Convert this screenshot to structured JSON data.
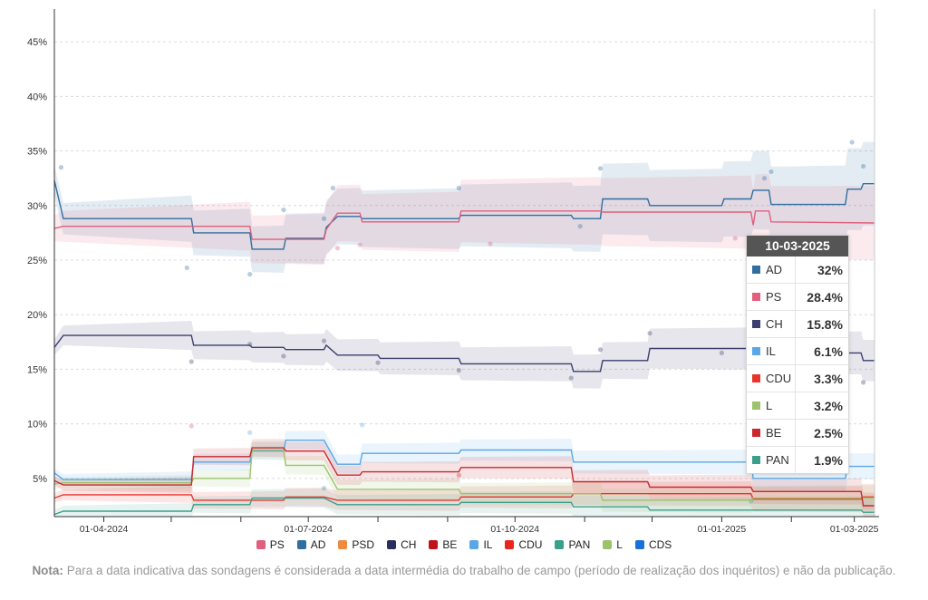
{
  "chart_data": {
    "type": "line",
    "title": "",
    "xlabel": "",
    "ylabel": "",
    "ylim": [
      1.5,
      48
    ],
    "yticks": [
      5,
      10,
      15,
      20,
      25,
      30,
      35,
      40,
      45
    ],
    "ytick_labels": [
      "5%",
      "10%",
      "15%",
      "20%",
      "25%",
      "30%",
      "35%",
      "40%",
      "45%"
    ],
    "xlim": [
      "2024-03-10",
      "2025-03-10"
    ],
    "xtick_labels": [
      {
        "date": "2024-04-01",
        "label": "01-04-2024"
      },
      {
        "date": "2024-07-01",
        "label": "01-07-2024"
      },
      {
        "date": "2024-10-01",
        "label": "01-10-2024"
      },
      {
        "date": "2025-01-01",
        "label": "01-01-2025"
      },
      {
        "date": "2025-03-01",
        "label": "01-03-2025"
      }
    ],
    "grid": true,
    "legend_position": "bottom",
    "series": [
      {
        "name": "AD",
        "color": "#2f6f9f",
        "values": [
          [
            "2024-03-10",
            32.3
          ],
          [
            "2024-03-14",
            28.8
          ],
          [
            "2024-05-10",
            28.8
          ],
          [
            "2024-05-11",
            27.5
          ],
          [
            "2024-06-05",
            27.5
          ],
          [
            "2024-06-06",
            26.0
          ],
          [
            "2024-06-20",
            26.0
          ],
          [
            "2024-06-21",
            27.0
          ],
          [
            "2024-07-08",
            27.0
          ],
          [
            "2024-07-09",
            28.0
          ],
          [
            "2024-07-14",
            29.0
          ],
          [
            "2024-07-24",
            29.0
          ],
          [
            "2024-07-25",
            28.8
          ],
          [
            "2024-09-06",
            28.8
          ],
          [
            "2024-09-07",
            29.1
          ],
          [
            "2024-10-26",
            29.1
          ],
          [
            "2024-10-27",
            28.8
          ],
          [
            "2024-11-08",
            28.8
          ],
          [
            "2024-11-09",
            30.6
          ],
          [
            "2024-11-29",
            30.6
          ],
          [
            "2024-11-30",
            30.0
          ],
          [
            "2025-01-01",
            30.0
          ],
          [
            "2025-01-02",
            30.6
          ],
          [
            "2025-01-14",
            30.6
          ],
          [
            "2025-01-15",
            31.4
          ],
          [
            "2025-01-22",
            31.4
          ],
          [
            "2025-01-23",
            30.1
          ],
          [
            "2025-02-25",
            30.1
          ],
          [
            "2025-02-26",
            31.5
          ],
          [
            "2025-03-04",
            31.5
          ],
          [
            "2025-03-05",
            32.0
          ],
          [
            "2025-03-10",
            32.0
          ]
        ]
      },
      {
        "name": "PS",
        "color": "#e0607e",
        "values": [
          [
            "2024-03-10",
            27.9
          ],
          [
            "2024-03-14",
            28.1
          ],
          [
            "2024-06-05",
            28.1
          ],
          [
            "2024-06-06",
            26.9
          ],
          [
            "2024-07-08",
            26.9
          ],
          [
            "2024-07-09",
            27.8
          ],
          [
            "2024-07-14",
            29.3
          ],
          [
            "2024-07-24",
            29.3
          ],
          [
            "2024-07-25",
            28.5
          ],
          [
            "2024-09-06",
            28.5
          ],
          [
            "2024-09-07",
            29.5
          ],
          [
            "2024-11-08",
            29.5
          ],
          [
            "2024-11-09",
            29.4
          ],
          [
            "2025-01-14",
            29.4
          ],
          [
            "2025-01-15",
            28.2
          ],
          [
            "2025-01-16",
            29.5
          ],
          [
            "2025-01-22",
            29.5
          ],
          [
            "2025-01-23",
            28.5
          ],
          [
            "2025-03-10",
            28.4
          ]
        ]
      },
      {
        "name": "CH",
        "color": "#3b3f6e",
        "values": [
          [
            "2024-03-10",
            17.0
          ],
          [
            "2024-03-14",
            18.1
          ],
          [
            "2024-05-10",
            18.1
          ],
          [
            "2024-05-11",
            17.2
          ],
          [
            "2024-06-05",
            17.2
          ],
          [
            "2024-06-06",
            17.0
          ],
          [
            "2024-06-20",
            17.0
          ],
          [
            "2024-06-21",
            16.8
          ],
          [
            "2024-07-08",
            16.8
          ],
          [
            "2024-07-09",
            17.2
          ],
          [
            "2024-07-14",
            16.3
          ],
          [
            "2024-08-01",
            16.3
          ],
          [
            "2024-08-02",
            16.0
          ],
          [
            "2024-09-06",
            16.0
          ],
          [
            "2024-09-07",
            15.5
          ],
          [
            "2024-10-26",
            15.5
          ],
          [
            "2024-10-27",
            14.8
          ],
          [
            "2024-11-08",
            14.8
          ],
          [
            "2024-11-09",
            15.8
          ],
          [
            "2024-11-29",
            15.8
          ],
          [
            "2024-11-30",
            16.9
          ],
          [
            "2025-01-22",
            16.9
          ],
          [
            "2025-01-23",
            16.5
          ],
          [
            "2025-03-04",
            16.5
          ],
          [
            "2025-03-05",
            15.8
          ],
          [
            "2025-03-10",
            15.8
          ]
        ]
      },
      {
        "name": "IL",
        "color": "#59a7e8",
        "values": [
          [
            "2024-03-10",
            5.5
          ],
          [
            "2024-03-14",
            4.9
          ],
          [
            "2024-05-10",
            4.9
          ],
          [
            "2024-05-11",
            6.5
          ],
          [
            "2024-06-05",
            6.5
          ],
          [
            "2024-06-06",
            7.5
          ],
          [
            "2024-06-20",
            7.5
          ],
          [
            "2024-06-21",
            8.5
          ],
          [
            "2024-07-08",
            8.5
          ],
          [
            "2024-07-14",
            6.3
          ],
          [
            "2024-07-24",
            6.3
          ],
          [
            "2024-07-25",
            7.3
          ],
          [
            "2024-09-06",
            7.3
          ],
          [
            "2024-09-07",
            7.6
          ],
          [
            "2024-10-26",
            7.6
          ],
          [
            "2024-10-27",
            6.5
          ],
          [
            "2025-01-14",
            6.5
          ],
          [
            "2025-01-15",
            5.0
          ],
          [
            "2025-02-25",
            5.0
          ],
          [
            "2025-02-26",
            6.1
          ],
          [
            "2025-03-10",
            6.1
          ]
        ]
      },
      {
        "name": "CDU",
        "color": "#e8352b",
        "values": [
          [
            "2024-03-10",
            3.2
          ],
          [
            "2024-03-14",
            3.5
          ],
          [
            "2024-05-10",
            3.5
          ],
          [
            "2024-05-11",
            3.0
          ],
          [
            "2024-06-20",
            3.0
          ],
          [
            "2024-06-21",
            3.3
          ],
          [
            "2024-07-08",
            3.3
          ],
          [
            "2024-07-14",
            3.0
          ],
          [
            "2024-09-06",
            3.0
          ],
          [
            "2024-09-07",
            3.3
          ],
          [
            "2024-10-26",
            3.3
          ],
          [
            "2024-10-27",
            3.6
          ],
          [
            "2025-01-14",
            3.6
          ],
          [
            "2025-01-15",
            3.1
          ],
          [
            "2025-03-04",
            3.1
          ],
          [
            "2025-03-05",
            3.3
          ],
          [
            "2025-03-10",
            3.3
          ]
        ]
      },
      {
        "name": "L",
        "color": "#9cc36b",
        "values": [
          [
            "2024-03-10",
            4.5
          ],
          [
            "2024-03-14",
            4.6
          ],
          [
            "2024-05-10",
            4.6
          ],
          [
            "2024-05-11",
            5.0
          ],
          [
            "2024-06-05",
            5.0
          ],
          [
            "2024-06-06",
            7.6
          ],
          [
            "2024-06-20",
            7.6
          ],
          [
            "2024-06-21",
            6.2
          ],
          [
            "2024-07-08",
            6.2
          ],
          [
            "2024-07-14",
            4.0
          ],
          [
            "2024-09-06",
            4.0
          ],
          [
            "2024-09-07",
            3.6
          ],
          [
            "2024-11-08",
            3.6
          ],
          [
            "2024-11-09",
            3.0
          ],
          [
            "2025-01-14",
            3.0
          ],
          [
            "2025-01-15",
            3.2
          ],
          [
            "2025-03-10",
            3.2
          ]
        ]
      },
      {
        "name": "BE",
        "color": "#c9282e",
        "values": [
          [
            "2024-03-10",
            4.8
          ],
          [
            "2024-03-14",
            4.4
          ],
          [
            "2024-05-10",
            4.4
          ],
          [
            "2024-05-11",
            7.0
          ],
          [
            "2024-06-05",
            7.0
          ],
          [
            "2024-06-06",
            7.8
          ],
          [
            "2024-06-20",
            7.8
          ],
          [
            "2024-06-21",
            7.5
          ],
          [
            "2024-07-08",
            7.5
          ],
          [
            "2024-07-14",
            5.3
          ],
          [
            "2024-07-24",
            5.3
          ],
          [
            "2024-07-25",
            5.6
          ],
          [
            "2024-09-06",
            5.6
          ],
          [
            "2024-09-07",
            6.0
          ],
          [
            "2024-10-26",
            6.0
          ],
          [
            "2024-10-27",
            4.7
          ],
          [
            "2024-11-29",
            4.7
          ],
          [
            "2024-11-30",
            4.2
          ],
          [
            "2025-01-14",
            4.2
          ],
          [
            "2025-01-15",
            3.8
          ],
          [
            "2025-03-04",
            3.8
          ],
          [
            "2025-03-05",
            2.5
          ],
          [
            "2025-03-10",
            2.5
          ]
        ]
      },
      {
        "name": "PAN",
        "color": "#3aa08a",
        "values": [
          [
            "2024-03-10",
            1.7
          ],
          [
            "2024-03-14",
            2.0
          ],
          [
            "2024-05-10",
            2.0
          ],
          [
            "2024-05-11",
            2.6
          ],
          [
            "2024-06-05",
            2.6
          ],
          [
            "2024-06-06",
            3.2
          ],
          [
            "2024-07-08",
            3.2
          ],
          [
            "2024-07-14",
            2.6
          ],
          [
            "2024-09-06",
            2.6
          ],
          [
            "2024-09-07",
            2.8
          ],
          [
            "2024-10-26",
            2.8
          ],
          [
            "2024-10-27",
            2.4
          ],
          [
            "2024-11-29",
            2.4
          ],
          [
            "2024-11-30",
            2.1
          ],
          [
            "2025-03-04",
            2.1
          ],
          [
            "2025-03-05",
            1.9
          ],
          [
            "2025-03-10",
            1.9
          ]
        ]
      }
    ],
    "polls": [
      {
        "date": "2024-03-13",
        "value": 33.5,
        "color": "#2f6f9f"
      },
      {
        "date": "2024-05-08",
        "value": 24.3,
        "color": "#2f6f9f"
      },
      {
        "date": "2024-06-05",
        "value": 23.7,
        "color": "#2f6f9f"
      },
      {
        "date": "2024-06-20",
        "value": 29.6,
        "color": "#2f6f9f"
      },
      {
        "date": "2024-07-08",
        "value": 28.8,
        "color": "#2f6f9f"
      },
      {
        "date": "2024-07-12",
        "value": 31.6,
        "color": "#2f6f9f"
      },
      {
        "date": "2024-09-06",
        "value": 31.6,
        "color": "#2f6f9f"
      },
      {
        "date": "2024-10-30",
        "value": 28.1,
        "color": "#2f6f9f"
      },
      {
        "date": "2024-11-08",
        "value": 33.4,
        "color": "#2f6f9f"
      },
      {
        "date": "2025-01-20",
        "value": 32.5,
        "color": "#2f6f9f"
      },
      {
        "date": "2025-01-23",
        "value": 33.1,
        "color": "#2f6f9f"
      },
      {
        "date": "2025-02-28",
        "value": 35.8,
        "color": "#2f6f9f"
      },
      {
        "date": "2025-03-05",
        "value": 33.6,
        "color": "#2f6f9f"
      },
      {
        "date": "2024-07-14",
        "value": 26.1,
        "color": "#e0607e"
      },
      {
        "date": "2024-07-24",
        "value": 26.4,
        "color": "#e0607e"
      },
      {
        "date": "2024-09-20",
        "value": 26.5,
        "color": "#e0607e"
      },
      {
        "date": "2025-01-07",
        "value": 27.0,
        "color": "#e0607e"
      },
      {
        "date": "2024-05-10",
        "value": 15.7,
        "color": "#3b3f6e"
      },
      {
        "date": "2024-06-05",
        "value": 17.3,
        "color": "#3b3f6e"
      },
      {
        "date": "2024-06-20",
        "value": 16.2,
        "color": "#3b3f6e"
      },
      {
        "date": "2024-07-08",
        "value": 17.6,
        "color": "#3b3f6e"
      },
      {
        "date": "2024-08-01",
        "value": 15.6,
        "color": "#3b3f6e"
      },
      {
        "date": "2024-09-06",
        "value": 14.9,
        "color": "#3b3f6e"
      },
      {
        "date": "2024-10-26",
        "value": 14.2,
        "color": "#3b3f6e"
      },
      {
        "date": "2024-11-08",
        "value": 16.8,
        "color": "#3b3f6e"
      },
      {
        "date": "2024-11-30",
        "value": 18.3,
        "color": "#3b3f6e"
      },
      {
        "date": "2025-01-01",
        "value": 16.5,
        "color": "#3b3f6e"
      },
      {
        "date": "2025-03-05",
        "value": 13.8,
        "color": "#3b3f6e"
      },
      {
        "date": "2024-05-10",
        "value": 9.8,
        "color": "#e0607e"
      },
      {
        "date": "2024-06-05",
        "value": 9.2,
        "color": "#59a7e8"
      },
      {
        "date": "2024-07-25",
        "value": 9.9,
        "color": "#59a7e8"
      },
      {
        "date": "2024-07-08",
        "value": 4.1,
        "color": "#3aa08a"
      },
      {
        "date": "2024-09-06",
        "value": 5.3,
        "color": "#c9282e"
      },
      {
        "date": "2025-01-14",
        "value": 2.9,
        "color": "#3aa08a"
      }
    ],
    "legend": [
      {
        "name": "PS",
        "color": "#e0607e"
      },
      {
        "name": "AD",
        "color": "#2f6f9f"
      },
      {
        "name": "PSD",
        "color": "#ef8a3f"
      },
      {
        "name": "CH",
        "color": "#2a2e5c"
      },
      {
        "name": "BE",
        "color": "#c0141c"
      },
      {
        "name": "IL",
        "color": "#59a7e8"
      },
      {
        "name": "CDU",
        "color": "#e8261e"
      },
      {
        "name": "PAN",
        "color": "#3aa08a"
      },
      {
        "name": "L",
        "color": "#9cc36b"
      },
      {
        "name": "CDS",
        "color": "#1a6fd8"
      }
    ]
  },
  "tooltip": {
    "date": "10-03-2025",
    "rows": [
      {
        "name": "AD",
        "value": "32%",
        "color": "#2f6f9f"
      },
      {
        "name": "PS",
        "value": "28.4%",
        "color": "#e0607e"
      },
      {
        "name": "CH",
        "value": "15.8%",
        "color": "#3b3f6e"
      },
      {
        "name": "IL",
        "value": "6.1%",
        "color": "#59a7e8"
      },
      {
        "name": "CDU",
        "value": "3.3%",
        "color": "#e8352b"
      },
      {
        "name": "L",
        "value": "3.2%",
        "color": "#9cc36b"
      },
      {
        "name": "BE",
        "value": "2.5%",
        "color": "#c9282e"
      },
      {
        "name": "PAN",
        "value": "1.9%",
        "color": "#3aa08a"
      }
    ]
  },
  "note": {
    "label": "Nota:",
    "text": " Para a data indicativa das sondagens é considerada a data intermédia do trabalho de campo (período de realização dos inquéritos) e não da publicação."
  }
}
